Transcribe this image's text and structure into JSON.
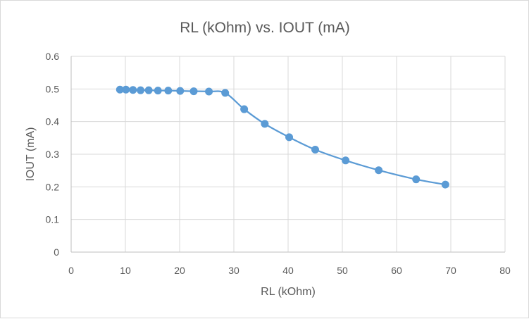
{
  "chart_data": {
    "type": "scatter",
    "title": "RL (kOhm) vs. IOUT (mA)",
    "xlabel": "RL (kOhm)",
    "ylabel": "IOUT (mA)",
    "xlim": [
      0,
      80
    ],
    "ylim": [
      0,
      0.6
    ],
    "xticks": [
      0,
      10,
      20,
      30,
      40,
      50,
      60,
      70,
      80
    ],
    "yticks": [
      0,
      0.1,
      0.2,
      0.3,
      0.4,
      0.5,
      0.6
    ],
    "xtick_labels": [
      "0",
      "10",
      "20",
      "30",
      "40",
      "50",
      "60",
      "70",
      "80"
    ],
    "ytick_labels": [
      "0",
      "0.1",
      "0.2",
      "0.3",
      "0.4",
      "0.5",
      "0.6"
    ],
    "grid": true,
    "legend": "none",
    "line_style": "smooth",
    "series": [
      {
        "color": "#5b9bd5",
        "x": [
          9.0,
          10.1,
          11.4,
          12.8,
          14.3,
          16.0,
          17.9,
          20.1,
          22.6,
          25.4,
          28.4,
          31.9,
          35.7,
          40.2,
          45.0,
          50.6,
          56.7,
          63.6,
          69.0
        ],
        "y": [
          0.498,
          0.498,
          0.497,
          0.496,
          0.496,
          0.495,
          0.495,
          0.494,
          0.493,
          0.492,
          0.488,
          0.438,
          0.393,
          0.352,
          0.314,
          0.281,
          0.251,
          0.223,
          0.207
        ]
      }
    ]
  }
}
